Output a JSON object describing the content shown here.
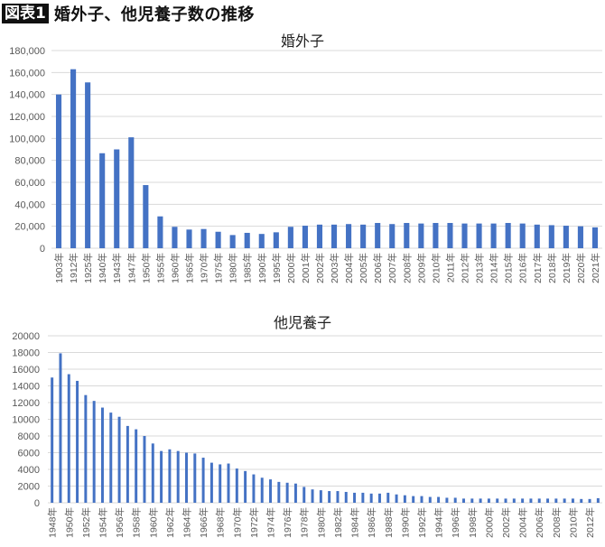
{
  "header": {
    "badge": "図表1",
    "title": "婚外子、他児養子数の推移"
  },
  "colors": {
    "bar": "#4472C4",
    "grid": "#D9D9D9",
    "axis_text": "#595959"
  },
  "chart_data": [
    {
      "type": "bar",
      "title": "婚外子",
      "xlabel": "",
      "ylabel": "",
      "ylim": [
        0,
        180000
      ],
      "yticks": [
        "0",
        "20,000",
        "40,000",
        "60,000",
        "80,000",
        "100,000",
        "120,000",
        "140,000",
        "160,000",
        "180,000"
      ],
      "grid": true,
      "legend": "none",
      "categories": [
        "1903年",
        "1912年",
        "1925年",
        "1940年",
        "1943年",
        "1947年",
        "1950年",
        "1955年",
        "1960年",
        "1965年",
        "1970年",
        "1975年",
        "1980年",
        "1985年",
        "1990年",
        "1995年",
        "2000年",
        "2001年",
        "2002年",
        "2003年",
        "2004年",
        "2005年",
        "2006年",
        "2007年",
        "2008年",
        "2009年",
        "2010年",
        "2011年",
        "2012年",
        "2013年",
        "2014年",
        "2015年",
        "2016年",
        "2017年",
        "2018年",
        "2019年",
        "2020年",
        "2021年"
      ],
      "values": [
        140000,
        163000,
        151000,
        86500,
        90000,
        101000,
        57500,
        29000,
        19500,
        17000,
        17500,
        15000,
        12000,
        14000,
        13000,
        14500,
        19500,
        20500,
        21500,
        21500,
        22000,
        21500,
        23000,
        22000,
        23000,
        22500,
        23000,
        23000,
        22500,
        22500,
        22500,
        23000,
        22500,
        21500,
        21000,
        20500,
        20000,
        19000
      ]
    },
    {
      "type": "bar",
      "title": "他児養子",
      "xlabel": "",
      "ylabel": "",
      "ylim": [
        0,
        20000
      ],
      "yticks": [
        "0",
        "2000",
        "4000",
        "6000",
        "8000",
        "10000",
        "12000",
        "14000",
        "16000",
        "18000",
        "20000"
      ],
      "grid": true,
      "legend": "none",
      "tick_labels": [
        "1948年",
        "1950年",
        "1952年",
        "1954年",
        "1956年",
        "1958年",
        "1960年",
        "1962年",
        "1964年",
        "1966年",
        "1968年",
        "1970年",
        "1972年",
        "1974年",
        "1976年",
        "1978年",
        "1980年",
        "1982年",
        "1984年",
        "1986年",
        "1988年",
        "1990年",
        "1992年",
        "1994年",
        "1996年",
        "1998年",
        "2000年",
        "2002年",
        "2004年",
        "2006年",
        "2008年",
        "2010年",
        "2012年"
      ],
      "categories": [
        "1948",
        "1949",
        "1950",
        "1951",
        "1952",
        "1953",
        "1954",
        "1955",
        "1956",
        "1957",
        "1958",
        "1959",
        "1960",
        "1961",
        "1962",
        "1963",
        "1964",
        "1965",
        "1966",
        "1967",
        "1968",
        "1969",
        "1970",
        "1971",
        "1972",
        "1973",
        "1974",
        "1975",
        "1976",
        "1977",
        "1978",
        "1979",
        "1980",
        "1981",
        "1982",
        "1983",
        "1984",
        "1985",
        "1986",
        "1987",
        "1988",
        "1989",
        "1990",
        "1991",
        "1992",
        "1993",
        "1994",
        "1995",
        "1996",
        "1997",
        "1998",
        "1999",
        "2000",
        "2001",
        "2002",
        "2003",
        "2004",
        "2005",
        "2006",
        "2007",
        "2008",
        "2009",
        "2010",
        "2011",
        "2012",
        "2013"
      ],
      "values": [
        15000,
        17900,
        15400,
        14600,
        12900,
        12200,
        11400,
        10800,
        10300,
        9200,
        8800,
        8000,
        7100,
        6200,
        6400,
        6200,
        6000,
        5900,
        5400,
        4800,
        4600,
        4700,
        4100,
        3800,
        3400,
        3000,
        2800,
        2500,
        2400,
        2300,
        1900,
        1600,
        1500,
        1400,
        1400,
        1300,
        1200,
        1200,
        1100,
        1100,
        1200,
        1000,
        900,
        800,
        800,
        700,
        700,
        600,
        600,
        500,
        500,
        500,
        500,
        500,
        500,
        500,
        500,
        500,
        500,
        500,
        500,
        500,
        500,
        450,
        450,
        550
      ]
    }
  ]
}
